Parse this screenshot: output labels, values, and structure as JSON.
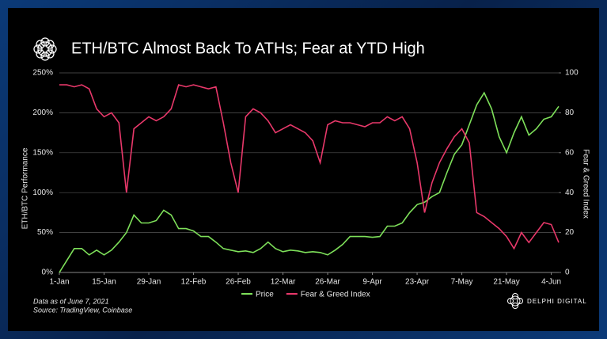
{
  "chart_data": {
    "type": "line",
    "title": "ETH/BTC Almost Back To ATHs; Fear at YTD High",
    "ylabel": "ETH/BTC Performance",
    "y2label": "Fear & Greed Index",
    "notes": [
      "Data as of June 7, 2021",
      "Source: TradingView, Coinbase"
    ],
    "brand": "DELPHI DIGITAL",
    "grid": true,
    "legend": "bottom",
    "categories": [
      "1-Jan",
      null,
      null,
      null,
      null,
      null,
      "15-Jan",
      null,
      null,
      null,
      null,
      null,
      "29-Jan",
      null,
      null,
      null,
      null,
      null,
      "12-Feb",
      null,
      null,
      null,
      null,
      null,
      "26-Feb",
      null,
      null,
      null,
      null,
      null,
      "12-Mar",
      null,
      null,
      null,
      null,
      null,
      "26-Mar",
      null,
      null,
      null,
      null,
      null,
      "9-Apr",
      null,
      null,
      null,
      null,
      null,
      "23-Apr",
      null,
      null,
      null,
      null,
      null,
      "7-May",
      null,
      null,
      null,
      null,
      null,
      "21-May",
      null,
      null,
      null,
      null,
      null,
      "4-Jun",
      null
    ],
    "ylim": [
      0,
      250
    ],
    "yticks": [
      {
        "value": 0,
        "label": "0%"
      },
      {
        "value": 50,
        "label": "50%"
      },
      {
        "value": 100,
        "label": "100%"
      },
      {
        "value": 150,
        "label": "150%"
      },
      {
        "value": 200,
        "label": "200%"
      },
      {
        "value": 250,
        "label": "250%"
      }
    ],
    "y2lim": [
      0,
      100
    ],
    "y2ticks": [
      0,
      20,
      40,
      60,
      80,
      100
    ],
    "series": [
      {
        "name": "Price",
        "color": "#7ee05a",
        "values": [
          0,
          15,
          30,
          30,
          22,
          28,
          22,
          28,
          38,
          50,
          72,
          62,
          62,
          65,
          78,
          72,
          55,
          55,
          52,
          45,
          45,
          38,
          30,
          28,
          26,
          27,
          25,
          30,
          38,
          30,
          26,
          28,
          27,
          25,
          26,
          25,
          22,
          28,
          35,
          45,
          45,
          45,
          44,
          45,
          58,
          58,
          62,
          75,
          85,
          88,
          95,
          100,
          125,
          148,
          160,
          185,
          210,
          225,
          205,
          170,
          150,
          175,
          195,
          172,
          180,
          192,
          195,
          208
        ]
      },
      {
        "name": "Fear & Greed Index",
        "color": "#e8386a",
        "axis": "y2",
        "values": [
          94,
          94,
          93,
          94,
          92,
          82,
          78,
          80,
          75,
          40,
          72,
          75,
          78,
          76,
          78,
          82,
          94,
          93,
          94,
          93,
          92,
          93,
          75,
          55,
          40,
          78,
          82,
          80,
          76,
          70,
          72,
          74,
          72,
          70,
          66,
          55,
          74,
          76,
          75,
          75,
          74,
          73,
          75,
          75,
          78,
          76,
          78,
          72,
          55,
          30,
          45,
          55,
          62,
          68,
          72,
          65,
          30,
          28,
          25,
          22,
          18,
          12,
          20,
          15,
          20,
          25,
          24,
          15
        ]
      }
    ]
  }
}
